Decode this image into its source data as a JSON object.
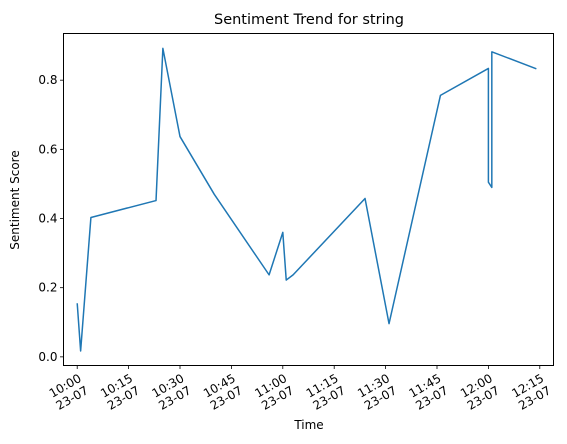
{
  "chart_data": {
    "type": "line",
    "title": "Sentiment Trend for string",
    "xlabel": "Time",
    "ylabel": "Sentiment Score",
    "x_unit": "minutes",
    "xlim": [
      "09:56",
      "12:19"
    ],
    "ylim": [
      -0.025,
      0.935
    ],
    "x_ticks": [
      {
        "time": "10:00",
        "date": "23-07"
      },
      {
        "time": "10:15",
        "date": "23-07"
      },
      {
        "time": "10:30",
        "date": "23-07"
      },
      {
        "time": "10:45",
        "date": "23-07"
      },
      {
        "time": "11:00",
        "date": "23-07"
      },
      {
        "time": "11:15",
        "date": "23-07"
      },
      {
        "time": "11:30",
        "date": "23-07"
      },
      {
        "time": "11:45",
        "date": "23-07"
      },
      {
        "time": "12:00",
        "date": "23-07"
      },
      {
        "time": "12:15",
        "date": "23-07"
      }
    ],
    "y_ticks": [
      "0.0",
      "0.2",
      "0.4",
      "0.6",
      "0.8"
    ],
    "grid": false,
    "line_color": "#1f77b4",
    "series": [
      {
        "x": [
          "10:00",
          "10:01",
          "10:04",
          "10:23",
          "10:25",
          "10:30",
          "10:40",
          "10:56",
          "11:00",
          "11:01",
          "11:03",
          "11:24",
          "11:31",
          "11:46",
          "12:00",
          "12:00",
          "12:01",
          "12:01",
          "12:14"
        ],
        "y": [
          0.155,
          0.017,
          0.403,
          0.452,
          0.892,
          0.637,
          0.47,
          0.237,
          0.36,
          0.222,
          0.237,
          0.458,
          0.096,
          0.756,
          0.834,
          0.505,
          0.49,
          0.882,
          0.833
        ]
      }
    ]
  }
}
